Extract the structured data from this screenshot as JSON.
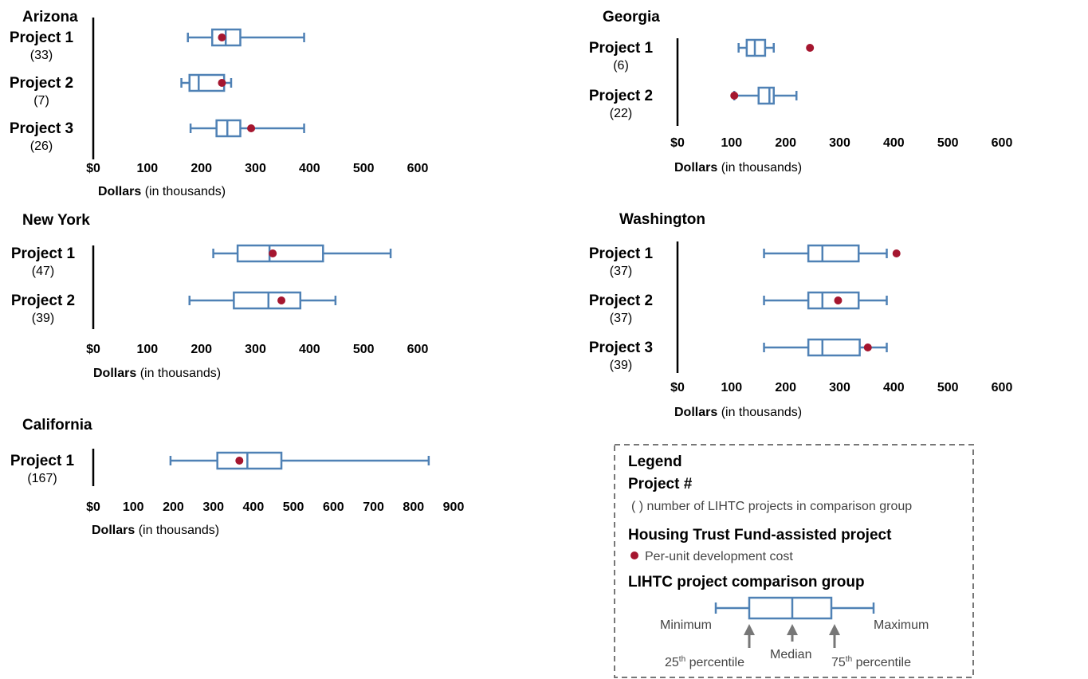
{
  "colors": {
    "box": "#4f81b5",
    "marker": "#a5162f",
    "axis": "#000000",
    "legend_border": "#777777",
    "arrow": "#777777"
  },
  "chart_data": [
    {
      "type": "boxplot",
      "title": "Arizona",
      "xlabel_bold": "Dollars",
      "xlabel_rest": " (in thousands)",
      "xlim": [
        0,
        600
      ],
      "ticks": [
        0,
        100,
        200,
        300,
        400,
        500,
        600
      ],
      "tick_labels": [
        "$0",
        "100",
        "200",
        "300",
        "400",
        "500",
        "600"
      ],
      "series": [
        {
          "label": "Project 1",
          "count": "(33)",
          "min": 175,
          "q1": 220,
          "median": 245,
          "q3": 272,
          "max": 390,
          "htf_cost": 238
        },
        {
          "label": "Project 2",
          "count": "(7)",
          "min": 163,
          "q1": 178,
          "median": 195,
          "q3": 242,
          "max": 255,
          "htf_cost": 238
        },
        {
          "label": "Project 3",
          "count": "(26)",
          "min": 180,
          "q1": 228,
          "median": 248,
          "q3": 272,
          "max": 390,
          "htf_cost": 292
        }
      ]
    },
    {
      "type": "boxplot",
      "title": "Georgia",
      "xlabel_bold": "Dollars",
      "xlabel_rest": " (in thousands)",
      "xlim": [
        0,
        600
      ],
      "ticks": [
        0,
        100,
        200,
        300,
        400,
        500,
        600
      ],
      "tick_labels": [
        "$0",
        "100",
        "200",
        "300",
        "400",
        "500",
        "600"
      ],
      "series": [
        {
          "label": "Project 1",
          "count": "(6)",
          "min": 113,
          "q1": 128,
          "median": 143,
          "q3": 162,
          "max": 178,
          "htf_cost": 245
        },
        {
          "label": "Project 2",
          "count": "(22)",
          "min": 105,
          "q1": 150,
          "median": 170,
          "q3": 178,
          "max": 220,
          "htf_cost": 105
        }
      ]
    },
    {
      "type": "boxplot",
      "title": "New York",
      "xlabel_bold": "Dollars",
      "xlabel_rest": " (in thousands)",
      "xlim": [
        0,
        600
      ],
      "ticks": [
        0,
        100,
        200,
        300,
        400,
        500,
        600
      ],
      "tick_labels": [
        "$0",
        "100",
        "200",
        "300",
        "400",
        "500",
        "600"
      ],
      "series": [
        {
          "label": "Project 1",
          "count": "(47)",
          "min": 222,
          "q1": 267,
          "median": 326,
          "q3": 425,
          "max": 550,
          "htf_cost": 332
        },
        {
          "label": "Project 2",
          "count": "(39)",
          "min": 178,
          "q1": 260,
          "median": 324,
          "q3": 383,
          "max": 448,
          "htf_cost": 348
        }
      ]
    },
    {
      "type": "boxplot",
      "title": "Washington",
      "xlabel_bold": "Dollars",
      "xlabel_rest": " (in thousands)",
      "xlim": [
        0,
        600
      ],
      "ticks": [
        0,
        100,
        200,
        300,
        400,
        500,
        600
      ],
      "tick_labels": [
        "$0",
        "100",
        "200",
        "300",
        "400",
        "500",
        "600"
      ],
      "series": [
        {
          "label": "Project 1",
          "count": "(37)",
          "min": 160,
          "q1": 242,
          "median": 268,
          "q3": 335,
          "max": 387,
          "htf_cost": 405
        },
        {
          "label": "Project 2",
          "count": "(37)",
          "min": 160,
          "q1": 242,
          "median": 268,
          "q3": 335,
          "max": 387,
          "htf_cost": 297
        },
        {
          "label": "Project 3",
          "count": "(39)",
          "min": 160,
          "q1": 242,
          "median": 268,
          "q3": 337,
          "max": 387,
          "htf_cost": 352
        }
      ]
    },
    {
      "type": "boxplot",
      "title": "California",
      "xlabel_bold": "Dollars",
      "xlabel_rest": " (in thousands)",
      "xlim": [
        0,
        900
      ],
      "ticks": [
        0,
        100,
        200,
        300,
        400,
        500,
        600,
        700,
        800,
        900
      ],
      "tick_labels": [
        "$0",
        "100",
        "200",
        "300",
        "400",
        "500",
        "600",
        "700",
        "800",
        "900"
      ],
      "series": [
        {
          "label": "Project 1",
          "count": "(167)",
          "min": 193,
          "q1": 310,
          "median": 385,
          "q3": 470,
          "max": 838,
          "htf_cost": 365
        }
      ]
    }
  ],
  "legend": {
    "title": "Legend",
    "project_heading": "Project #",
    "count_text": "( ) number of LIHTC projects in comparison group",
    "htf_heading": "Housing Trust Fund-assisted project",
    "htf_text": "Per-unit development cost",
    "group_heading": "LIHTC project comparison group",
    "minimum": "Minimum",
    "maximum": "Maximum",
    "p25_num": "25",
    "p75_num": "75",
    "ordinal_sup": "th",
    "percentile_word": " percentile",
    "median": "Median"
  }
}
